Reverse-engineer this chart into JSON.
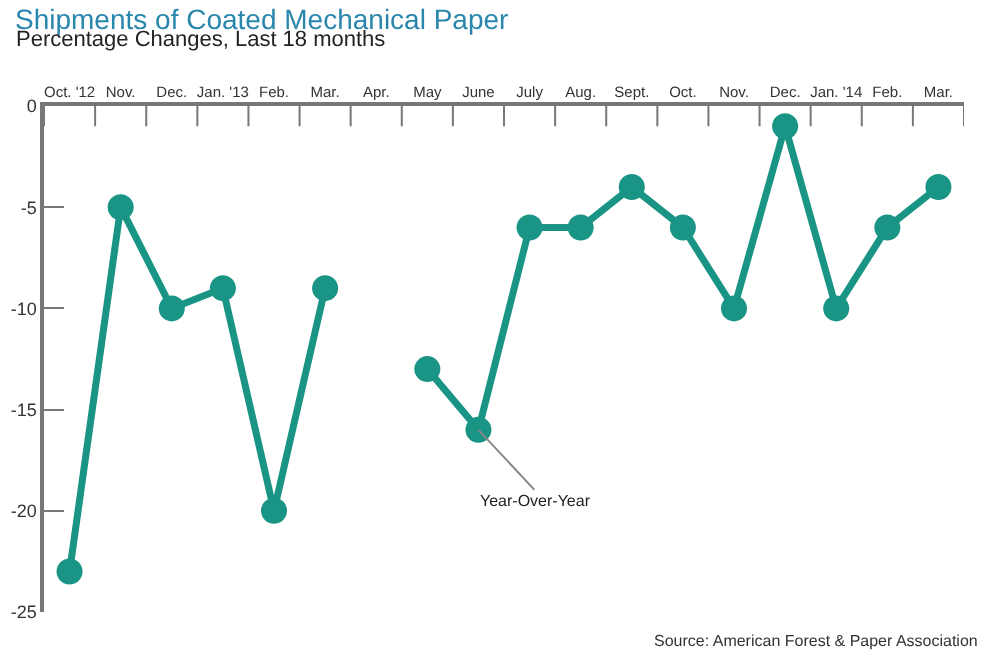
{
  "chart_data": {
    "type": "line",
    "title": "Shipments of Coated Mechanical Paper",
    "subtitle": "Percentage Changes, Last 18 months",
    "categories": [
      "Oct. '12",
      "Nov.",
      "Dec.",
      "Jan. '13",
      "Feb.",
      "Mar.",
      "Apr.",
      "May",
      "June",
      "July",
      "Aug.",
      "Sept.",
      "Oct.",
      "Nov.",
      "Dec.",
      "Jan. '14",
      "Feb.",
      "Mar."
    ],
    "series": [
      {
        "color": "#1a9484",
        "values": [
          -23,
          -5,
          -10,
          -9,
          -20,
          -9,
          null,
          -13,
          -16,
          -6,
          -6,
          -4,
          -6,
          -10,
          -1,
          -10,
          -6,
          -4
        ]
      }
    ],
    "ylim": [
      -25,
      0
    ],
    "yticks": [
      0,
      -5,
      -10,
      -15,
      -20,
      -25
    ],
    "grid": false,
    "marker": "circle",
    "line_style": "solid",
    "annotations": [
      {
        "text": "Year-Over-Year",
        "x": "June",
        "y": -16
      },
      "Source: American Forest & Paper Association"
    ]
  }
}
